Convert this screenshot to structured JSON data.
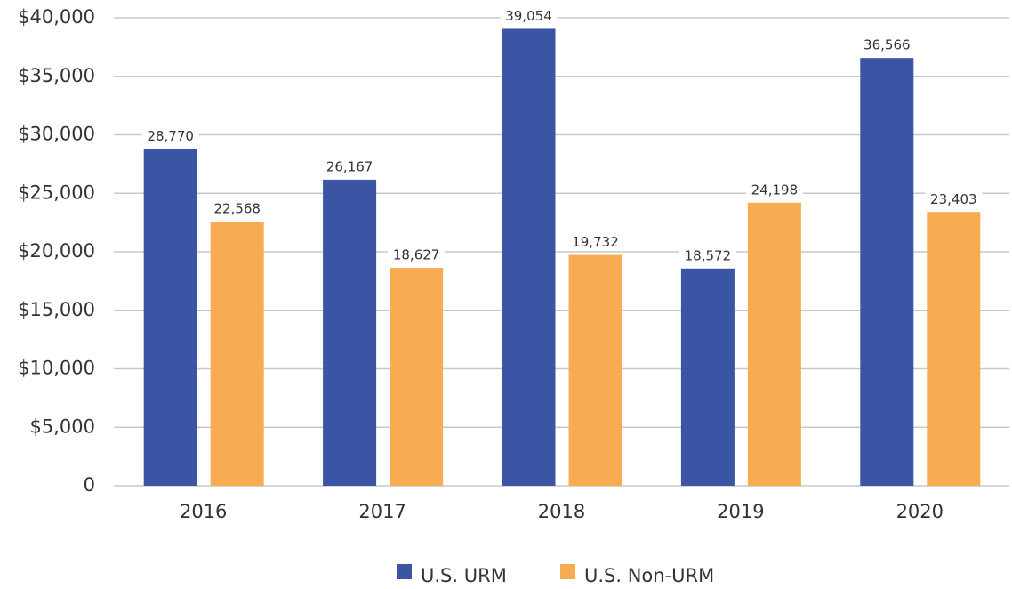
{
  "chart_data": {
    "type": "bar",
    "categories": [
      "2016",
      "2017",
      "2018",
      "2019",
      "2020"
    ],
    "series": [
      {
        "name": "U.S. URM",
        "color": "#3b54a4",
        "values": [
          28770,
          26167,
          39054,
          18572,
          36566
        ],
        "value_labels": [
          "28,770",
          "26,167",
          "39,054",
          "18,572",
          "36,566"
        ]
      },
      {
        "name": "U.S. Non-URM",
        "color": "#f7ac52",
        "values": [
          22568,
          18627,
          19732,
          24198,
          23403
        ],
        "value_labels": [
          "22,568",
          "18,627",
          "19,732",
          "24,198",
          "23,403"
        ]
      }
    ],
    "ylim": [
      0,
      40000
    ],
    "yticks": [
      0,
      {
        "value": 5000,
        "label": "$5,000"
      },
      {
        "value": 10000,
        "label": "$10,000"
      },
      {
        "value": 15000,
        "label": "$15,000"
      },
      {
        "value": 20000,
        "label": "$20,000"
      },
      {
        "value": 25000,
        "label": "$25,000"
      },
      {
        "value": 30000,
        "label": "$30,000"
      },
      {
        "value": 35000,
        "label": "$35,000"
      },
      {
        "value": 40000,
        "label": "$40,000"
      }
    ],
    "grid": true
  }
}
